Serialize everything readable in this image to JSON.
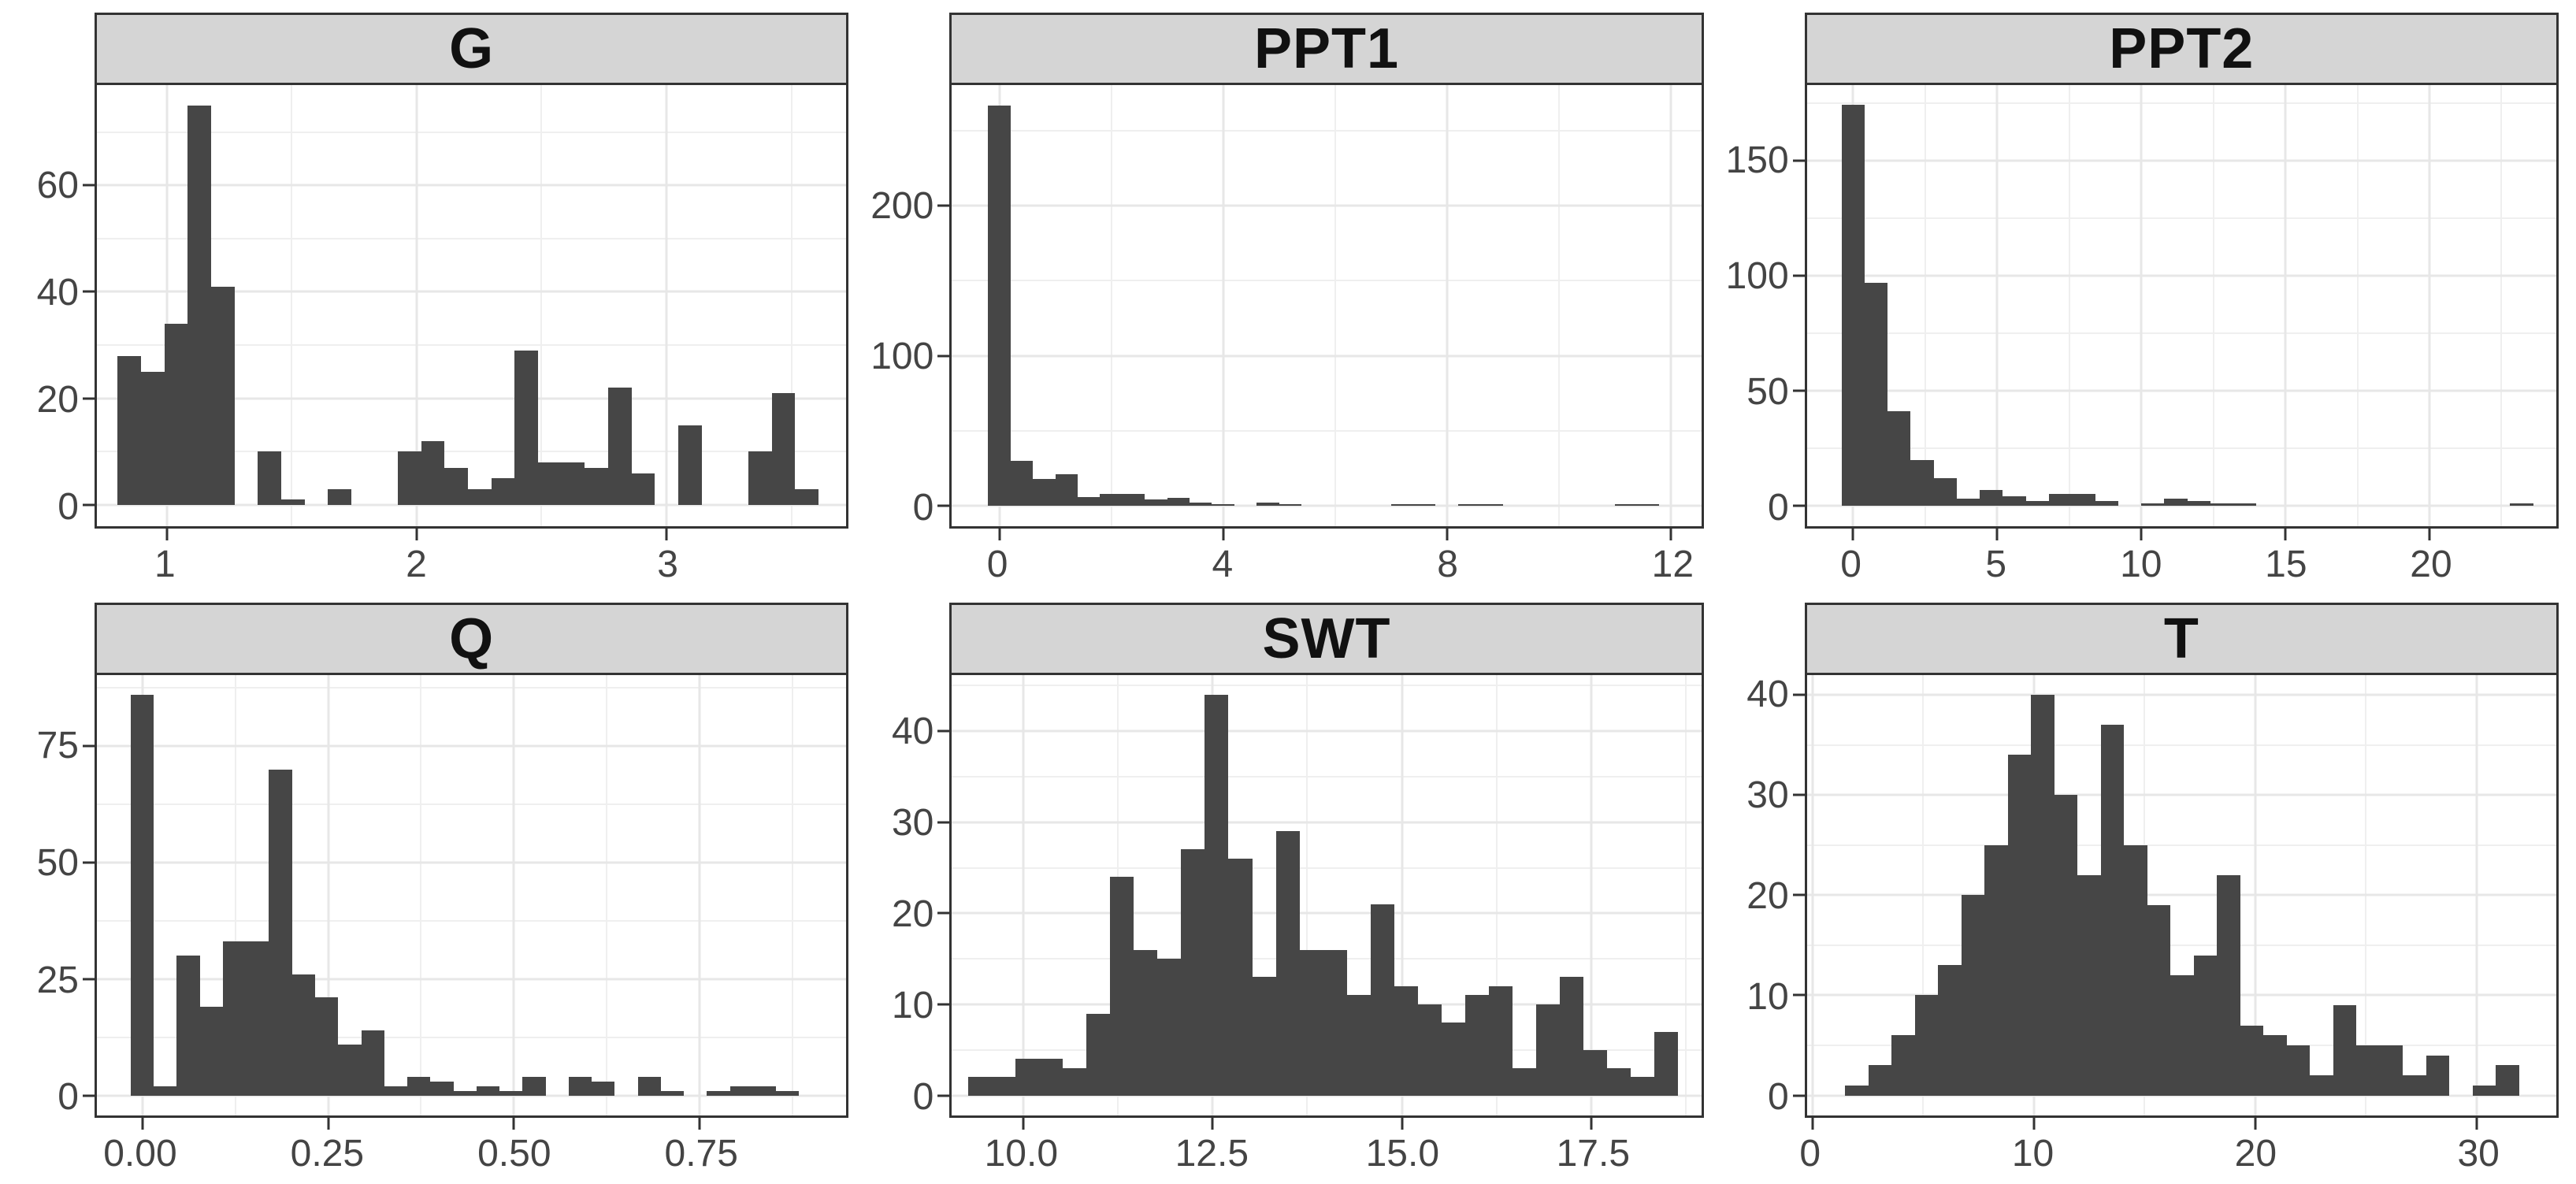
{
  "figure": {
    "background": "#ffffff",
    "bar_color": "#464646",
    "strip_background": "#d5d5d5",
    "strip_text_color": "#111111",
    "panel_border_color": "#333333",
    "grid_major_color": "#e7e7e7",
    "grid_minor_color": "#efefef",
    "axis_text_color": "#444444"
  },
  "chart_data": [
    {
      "type": "bar",
      "title": "G",
      "xlabel": "",
      "ylabel": "",
      "xlim": [
        0.72,
        3.72
      ],
      "ylim": [
        -3.9,
        78.8
      ],
      "grid": true,
      "x_ticks": [
        {
          "v": 1,
          "label": "1"
        },
        {
          "v": 2,
          "label": "2"
        },
        {
          "v": 3,
          "label": "3"
        }
      ],
      "y_ticks": [
        {
          "v": 0,
          "label": "0"
        },
        {
          "v": 20,
          "label": "20"
        },
        {
          "v": 40,
          "label": "40"
        },
        {
          "v": 60,
          "label": "60"
        }
      ],
      "x_minor": [
        1.5,
        2.5,
        3.5
      ],
      "y_minor": [
        10,
        30,
        50,
        70
      ],
      "bins": {
        "start": 0.803,
        "width": 0.0935,
        "counts": [
          28,
          25,
          34,
          75,
          41,
          0,
          10,
          1,
          0,
          3,
          0,
          0,
          10,
          12,
          7,
          3,
          5,
          29,
          8,
          8,
          7,
          22,
          6,
          0,
          15,
          0,
          0,
          10,
          21,
          3
        ]
      }
    },
    {
      "type": "bar",
      "title": "PPT1",
      "xlabel": "",
      "ylabel": "",
      "xlim": [
        -0.85,
        12.55
      ],
      "ylim": [
        -13.4,
        280.5
      ],
      "grid": true,
      "x_ticks": [
        {
          "v": 0,
          "label": "0"
        },
        {
          "v": 4,
          "label": "4"
        },
        {
          "v": 8,
          "label": "8"
        },
        {
          "v": 12,
          "label": "12"
        }
      ],
      "y_ticks": [
        {
          "v": 0,
          "label": "0"
        },
        {
          "v": 100,
          "label": "100"
        },
        {
          "v": 200,
          "label": "200"
        }
      ],
      "x_minor": [
        2,
        6,
        10
      ],
      "y_minor": [
        50,
        150,
        250
      ],
      "bins": {
        "start": -0.2,
        "width": 0.4,
        "counts": [
          267,
          30,
          18,
          21,
          6,
          8,
          8,
          4,
          5,
          2,
          1,
          0,
          2,
          1,
          0,
          0,
          0,
          0,
          1,
          1,
          0,
          1,
          1,
          0,
          0,
          0,
          0,
          0,
          1,
          1
        ]
      }
    },
    {
      "type": "bar",
      "title": "PPT2",
      "xlabel": "",
      "ylabel": "",
      "xlim": [
        -1.6,
        24.4
      ],
      "ylim": [
        -8.7,
        182.7
      ],
      "grid": true,
      "x_ticks": [
        {
          "v": 0,
          "label": "0"
        },
        {
          "v": 5,
          "label": "5"
        },
        {
          "v": 10,
          "label": "10"
        },
        {
          "v": 15,
          "label": "15"
        },
        {
          "v": 20,
          "label": "20"
        }
      ],
      "y_ticks": [
        {
          "v": 0,
          "label": "0"
        },
        {
          "v": 50,
          "label": "50"
        },
        {
          "v": 100,
          "label": "100"
        },
        {
          "v": 150,
          "label": "150"
        }
      ],
      "x_minor": [
        2.5,
        7.5,
        12.5,
        17.5,
        22.5
      ],
      "y_minor": [
        25,
        75,
        125,
        175
      ],
      "bins": {
        "start": -0.4,
        "width": 0.8,
        "counts": [
          174,
          97,
          41,
          20,
          12,
          3,
          7,
          4,
          2,
          5,
          5,
          2,
          0,
          1,
          3,
          2,
          1,
          1,
          0,
          0,
          0,
          0,
          0,
          0,
          0,
          0,
          0,
          0,
          0,
          1
        ]
      }
    },
    {
      "type": "bar",
      "title": "Q",
      "xlabel": "",
      "ylabel": "",
      "xlim": [
        -0.061,
        0.947
      ],
      "ylim": [
        -4.3,
        90.3
      ],
      "grid": true,
      "x_ticks": [
        {
          "v": 0,
          "label": "0.00"
        },
        {
          "v": 0.25,
          "label": "0.25"
        },
        {
          "v": 0.5,
          "label": "0.50"
        },
        {
          "v": 0.75,
          "label": "0.75"
        }
      ],
      "y_ticks": [
        {
          "v": 0,
          "label": "0"
        },
        {
          "v": 25,
          "label": "25"
        },
        {
          "v": 50,
          "label": "50"
        },
        {
          "v": 75,
          "label": "75"
        }
      ],
      "x_minor": [
        0.125,
        0.375,
        0.625,
        0.875
      ],
      "y_minor": [
        12.5,
        37.5,
        62.5,
        87.5
      ],
      "bins": {
        "start": -0.0155,
        "width": 0.031,
        "counts": [
          86,
          2,
          30,
          19,
          33,
          33,
          70,
          26,
          21,
          11,
          14,
          2,
          4,
          3,
          1,
          2,
          1,
          4,
          0,
          4,
          3,
          0,
          4,
          1,
          0,
          1,
          2,
          2,
          1,
          0
        ]
      }
    },
    {
      "type": "bar",
      "title": "SWT",
      "xlabel": "",
      "ylabel": "",
      "xlim": [
        9.06,
        18.95
      ],
      "ylim": [
        -2.2,
        46.2
      ],
      "grid": true,
      "x_ticks": [
        {
          "v": 10,
          "label": "10.0"
        },
        {
          "v": 12.5,
          "label": "12.5"
        },
        {
          "v": 15,
          "label": "15.0"
        },
        {
          "v": 17.5,
          "label": "17.5"
        }
      ],
      "y_ticks": [
        {
          "v": 0,
          "label": "0"
        },
        {
          "v": 10,
          "label": "10"
        },
        {
          "v": 20,
          "label": "20"
        },
        {
          "v": 30,
          "label": "30"
        },
        {
          "v": 40,
          "label": "40"
        }
      ],
      "x_minor": [
        11.25,
        13.75,
        16.25,
        18.75
      ],
      "y_minor": [
        5,
        15,
        25,
        35,
        45
      ],
      "bins": {
        "start": 9.274,
        "width": 0.3124,
        "counts": [
          2,
          2,
          4,
          4,
          3,
          9,
          24,
          16,
          15,
          27,
          44,
          26,
          13,
          29,
          16,
          16,
          11,
          21,
          12,
          10,
          8,
          11,
          12,
          3,
          10,
          13,
          5,
          3,
          2,
          7
        ]
      }
    },
    {
      "type": "bar",
      "title": "T",
      "xlabel": "",
      "ylabel": "",
      "xlim": [
        -0.25,
        33.6
      ],
      "ylim": [
        -2.0,
        42.0
      ],
      "grid": true,
      "x_ticks": [
        {
          "v": 0,
          "label": "0"
        },
        {
          "v": 10,
          "label": "10"
        },
        {
          "v": 20,
          "label": "20"
        },
        {
          "v": 30,
          "label": "30"
        }
      ],
      "y_ticks": [
        {
          "v": 0,
          "label": "0"
        },
        {
          "v": 10,
          "label": "10"
        },
        {
          "v": 20,
          "label": "20"
        },
        {
          "v": 30,
          "label": "30"
        },
        {
          "v": 40,
          "label": "40"
        }
      ],
      "x_minor": [
        5,
        15,
        25
      ],
      "y_minor": [
        5,
        15,
        25,
        35
      ],
      "bins": {
        "start": 1.475,
        "width": 1.05,
        "counts": [
          1,
          3,
          6,
          10,
          13,
          20,
          25,
          34,
          40,
          30,
          22,
          37,
          25,
          19,
          12,
          14,
          22,
          7,
          6,
          5,
          2,
          9,
          5,
          5,
          2,
          4,
          0,
          1,
          3
        ]
      }
    }
  ]
}
